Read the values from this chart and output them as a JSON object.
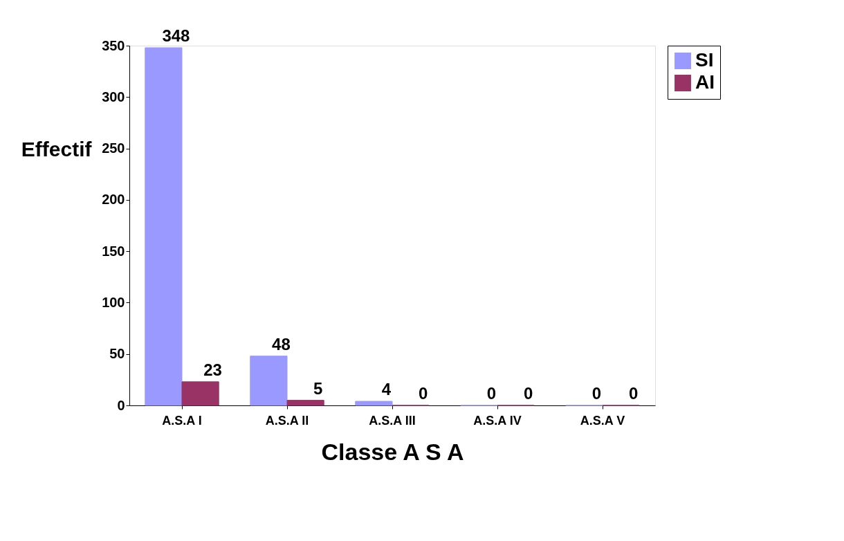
{
  "chart_data": {
    "type": "bar",
    "xlabel": "Classe A S A",
    "ylabel": "Effectif",
    "categories": [
      "A.S.A I",
      "A.S.A II",
      "A.S.A III",
      "A.S.A IV",
      "A.S.A V"
    ],
    "series": [
      {
        "name": "SI",
        "color": "#9999ff",
        "values": [
          348,
          48,
          4,
          0,
          0
        ]
      },
      {
        "name": "AI",
        "color": "#993366",
        "values": [
          23,
          5,
          0,
          0,
          0
        ]
      }
    ],
    "ylim": [
      0,
      350
    ],
    "yticks": [
      0,
      50,
      100,
      150,
      200,
      250,
      300,
      350
    ],
    "data_labels": true,
    "grid": false,
    "legend": "top right"
  }
}
